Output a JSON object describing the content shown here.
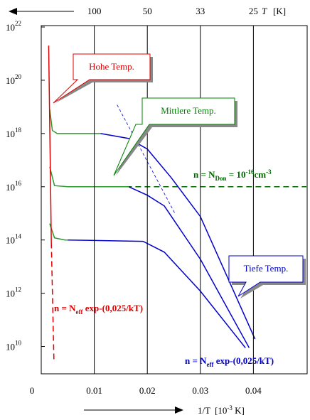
{
  "chart_data": {
    "type": "line",
    "x_label": "1/T",
    "x_label_unit": "[10",
    "x_label_exp": "-3",
    "x_label_unit_end": " K]",
    "top_label": "T",
    "top_label_unit": "[K]",
    "xlim": [
      0,
      0.05
    ],
    "ylim": [
      1000000000.0,
      1e+22
    ],
    "log_y": true,
    "xticks": [
      0,
      0.01,
      0.02,
      0.03,
      0.04
    ],
    "top_ticks": [
      {
        "value": 0.01,
        "label": "100"
      },
      {
        "value": 0.02,
        "label": "50"
      },
      {
        "value": 0.03,
        "label": "33"
      },
      {
        "value": 0.04,
        "label": "25"
      }
    ],
    "yticks": [
      {
        "value": 10000000000.0,
        "label": "10",
        "exponent": "10"
      },
      {
        "value": 1000000000000.0,
        "label": "10",
        "exponent": "12"
      },
      {
        "value": 100000000000000.0,
        "label": "10",
        "exponent": "14"
      },
      {
        "value": 1e+16,
        "label": "10",
        "exponent": "16"
      },
      {
        "value": 1e+18,
        "label": "10",
        "exponent": "18"
      },
      {
        "value": 1e+20,
        "label": "10",
        "exponent": "20"
      },
      {
        "value": 1e+22,
        "label": "10",
        "exponent": "22"
      }
    ],
    "grid": true,
    "series": [
      {
        "color": "#e00000",
        "style": "solid",
        "x": [
          0.0014,
          0.0019
        ],
        "values": [
          2e+21,
          79000000000000.0
        ]
      },
      {
        "color": "#e00000",
        "style": "dashed",
        "x": [
          0.0019,
          0.0024
        ],
        "values": [
          79000000000000.0,
          2500000000.0
        ]
      },
      {
        "color": "#2a9a2a",
        "style": "solid",
        "x": [
          0.0016,
          0.0021,
          0.003,
          0.0112
        ],
        "values": [
          7.9e+18,
          1.3e+18,
          1e+18,
          1e+18
        ]
      },
      {
        "color": "#0000cc",
        "style": "solid",
        "x": [
          0.0112,
          0.0165,
          0.02,
          0.0245,
          0.03,
          0.0403
        ],
        "values": [
          1e+18,
          6.5e+17,
          2.6e+17,
          2.2e+16,
          760000000000000.0,
          19000000000.0
        ]
      },
      {
        "color": "#2a9a2a",
        "style": "solid",
        "x": [
          0.0016,
          0.0025,
          0.005,
          0.0165
        ],
        "values": [
          5.6e+16,
          1.1e+16,
          1e+16,
          1e+16
        ]
      },
      {
        "color": "#0000cc",
        "style": "solid",
        "x": [
          0.0165,
          0.02,
          0.0232,
          0.03,
          0.0392
        ],
        "values": [
          1e+16,
          4800000000000000.0,
          1900000000000000.0,
          19000000000000.0,
          8900000000.0
        ]
      },
      {
        "color": "#2a9a2a",
        "style": "solid",
        "x": [
          0.0016,
          0.0025,
          0.0045,
          0.005
        ],
        "values": [
          410000000000000.0,
          120000000000000.0,
          100000000000000.0,
          100000000000000.0
        ]
      },
      {
        "color": "#0000cc",
        "style": "solid",
        "x": [
          0.005,
          0.0192,
          0.0232,
          0.03,
          0.0385
        ],
        "values": [
          100000000000000.0,
          89000000000000.0,
          35000000000000.0,
          1200000000000.0,
          8900000000.0
        ]
      },
      {
        "color": "#0000cc",
        "style": "thin-dashed",
        "x": [
          0.0143,
          0.0252
        ],
        "values": [
          1.2e+19,
          1000000000000000.0
        ]
      },
      {
        "color": "#006600",
        "style": "dashed",
        "x": [
          0.016,
          0.05
        ],
        "values": [
          1e+16,
          1e+16
        ]
      }
    ],
    "callouts": {
      "high": "Hohe Temp.",
      "mid": "Mittlere Temp.",
      "low": "Tiefe Temp."
    },
    "formula_red": {
      "text": "n = N",
      "sub": "eff",
      "rest": " exp-(0,025/kT)"
    },
    "formula_blue": {
      "text": "n = N",
      "sub": "eff",
      "rest": " exp-(0,025/kT)"
    },
    "formula_green": {
      "text": "n = N",
      "sub": "Don",
      "mid": " = 10",
      "exp": "-16",
      "rest": "cm",
      "exp2": "-3"
    }
  }
}
